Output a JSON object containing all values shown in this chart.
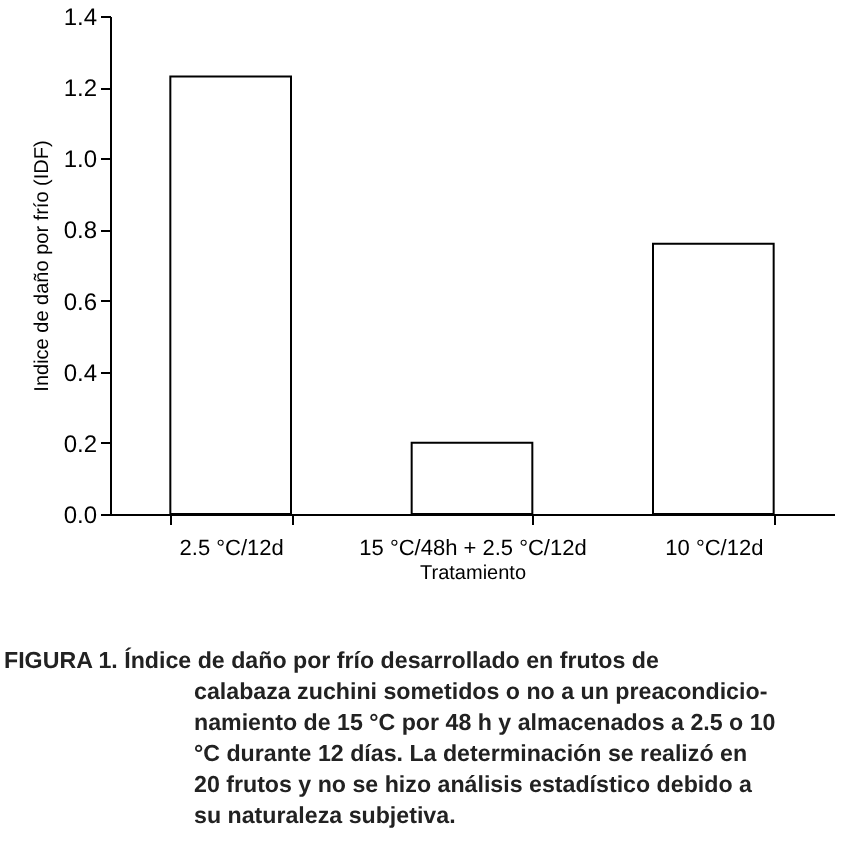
{
  "chart_data": {
    "type": "bar",
    "categories": [
      "2.5 °C/12d",
      "15 °C/48h + 2.5 °C/12d",
      "10 °C/12d"
    ],
    "values": [
      1.23,
      0.2,
      0.76
    ],
    "color": "#ffffff",
    "xlabel": "Tratamiento",
    "ylabel": "Indice de daño por frío (IDF)",
    "ylim": [
      0,
      1.4
    ],
    "yticks": [
      {
        "value": 0,
        "label": "0.0"
      },
      {
        "value": 0.2,
        "label": "0.2"
      },
      {
        "value": 0.4,
        "label": "0.4"
      },
      {
        "value": 0.6,
        "label": "0.6"
      },
      {
        "value": 0.8,
        "label": "0.8"
      },
      {
        "value": 1.0,
        "label": "1.0"
      },
      {
        "value": 1.2,
        "label": "1.2"
      },
      {
        "value": 1.4,
        "label": "1.4"
      }
    ],
    "grid": false,
    "annotations": [
      "FIGURA 1. Índice de daño por frío desarrollado en frutos de\ncalabaza zuchini sometidos o no a un preacondicio-\nnamiento de 15 °C por 48 h y almacenados a 2.5 o 10\n°C durante 12 días. La determinación se realizó en\n20  frutos y no se hizo análisis estadístico debido a\nsu naturaleza subjetiva."
    ]
  }
}
